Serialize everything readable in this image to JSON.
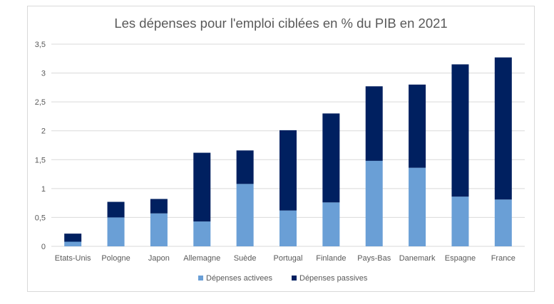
{
  "chart_data": {
    "type": "bar",
    "stacked": true,
    "title": "Les dépenses pour l'emploi ciblées en % du PIB en 2021",
    "xlabel": "",
    "ylabel": "",
    "ylim": [
      0,
      3.5
    ],
    "yticks": [
      "0",
      "0,5",
      "1",
      "1,5",
      "2",
      "2,5",
      "3",
      "3,5"
    ],
    "grid": true,
    "legend_position": "bottom",
    "categories": [
      "Etats-Unis",
      "Pologne",
      "Japon",
      "Allemagne",
      "Suède",
      "Portugal",
      "Finlande",
      "Pays-Bas",
      "Danemark",
      "Espagne",
      "France"
    ],
    "series": [
      {
        "name": "Dépenses activees",
        "color": "#6a9fd6",
        "values": [
          0.08,
          0.5,
          0.57,
          0.43,
          1.08,
          0.62,
          0.76,
          1.48,
          1.36,
          0.86,
          0.81
        ]
      },
      {
        "name": "Dépenses passives",
        "color": "#002060",
        "values": [
          0.14,
          0.27,
          0.25,
          1.19,
          0.58,
          1.39,
          1.54,
          1.29,
          1.44,
          2.29,
          2.46
        ]
      }
    ]
  }
}
